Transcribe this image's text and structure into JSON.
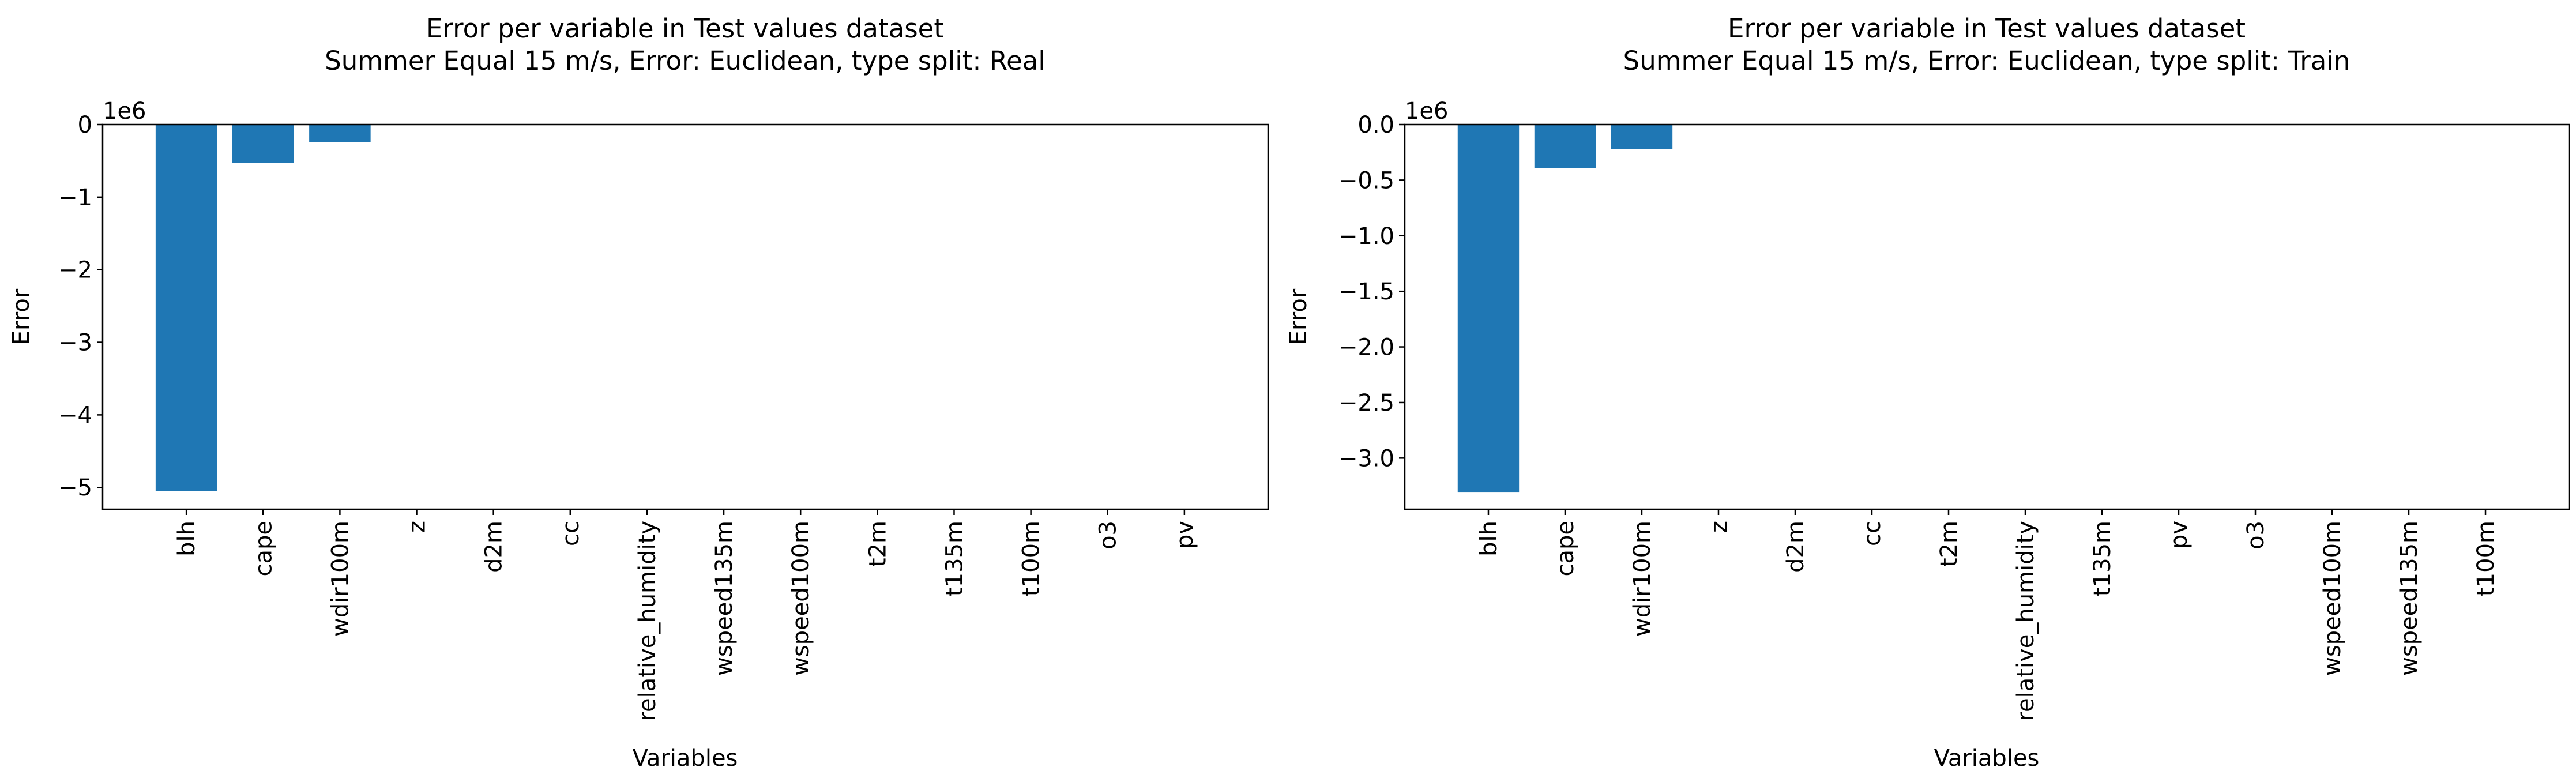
{
  "colors": {
    "bar": "#1f77b4",
    "axis": "#000000",
    "background": "#ffffff"
  },
  "chart_data": [
    {
      "type": "bar",
      "title": "Error per variable in Test values dataset\nSummer Equal 15 m/s, Error: Euclidean, type split: Real",
      "xlabel": "Variables",
      "ylabel": "Error",
      "offset_text": "1e6",
      "categories": [
        "blh",
        "cape",
        "wdir100m",
        "z",
        "d2m",
        "cc",
        "relative_humidity",
        "wspeed135m",
        "wspeed100m",
        "t2m",
        "t135m",
        "t100m",
        "o3",
        "pv"
      ],
      "values": [
        -5050000,
        -530000,
        -240000,
        0,
        0,
        0,
        0,
        0,
        0,
        0,
        0,
        0,
        0,
        0
      ],
      "ylim": [
        -5300000,
        0
      ],
      "yticks": [
        0,
        -1000000,
        -2000000,
        -3000000,
        -4000000,
        -5000000
      ],
      "ytick_labels": [
        "0",
        "−1",
        "−2",
        "−3",
        "−4",
        "−5"
      ],
      "grid": false
    },
    {
      "type": "bar",
      "title": "Error per variable in Test values dataset\nSummer Equal 15 m/s, Error: Euclidean, type split: Train",
      "xlabel": "Variables",
      "ylabel": "Error",
      "offset_text": "1e6",
      "categories": [
        "blh",
        "cape",
        "wdir100m",
        "z",
        "d2m",
        "cc",
        "t2m",
        "relative_humidity",
        "t135m",
        "pv",
        "o3",
        "wspeed100m",
        "wspeed135m",
        "t100m"
      ],
      "values": [
        -3310000,
        -390000,
        -220000,
        0,
        0,
        0,
        0,
        0,
        0,
        0,
        0,
        0,
        0,
        0
      ],
      "ylim": [
        -3460000,
        0
      ],
      "yticks": [
        0,
        -500000,
        -1000000,
        -1500000,
        -2000000,
        -2500000,
        -3000000
      ],
      "ytick_labels": [
        "0.0",
        "−0.5",
        "−1.0",
        "−1.5",
        "−2.0",
        "−2.5",
        "−3.0"
      ],
      "grid": false
    }
  ]
}
